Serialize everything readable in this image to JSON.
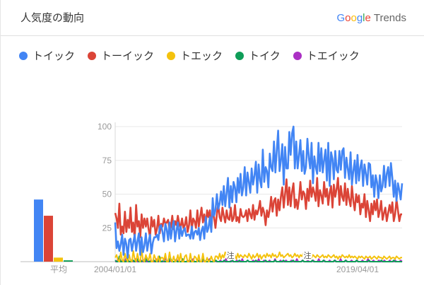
{
  "header": {
    "title": "人気度の動向",
    "brand": {
      "letters": [
        "G",
        "o",
        "o",
        "g",
        "l",
        "e"
      ],
      "letter_colors": [
        "#4285f4",
        "#ea4335",
        "#fbbc05",
        "#4285f4",
        "#34a853",
        "#ea4335"
      ],
      "suffix": "Trends"
    }
  },
  "legend": [
    {
      "label": "トイック",
      "color": "#4285f4"
    },
    {
      "label": "トーイック",
      "color": "#db4437"
    },
    {
      "label": "トエック",
      "color": "#f4c20d"
    },
    {
      "label": "トイク",
      "color": "#0f9d58"
    },
    {
      "label": "トエイック",
      "color": "#ab30c4"
    }
  ],
  "chart_data": [
    {
      "type": "bar",
      "title": "",
      "xlabel": "平均",
      "categories": [
        "トイック",
        "トーイック",
        "トエック",
        "トイク",
        "トエイック"
      ],
      "values": [
        46,
        34,
        3,
        1,
        0
      ],
      "colors": [
        "#4285f4",
        "#db4437",
        "#f4c20d",
        "#0f9d58",
        "#ab30c4"
      ],
      "ylim": [
        0,
        100
      ]
    },
    {
      "type": "line",
      "title": "",
      "x_start": "2004-01",
      "x_end": "2021-06",
      "x_ticks": [
        "2004/01/01",
        "2019/04/01"
      ],
      "y_ticks": [
        25,
        50,
        75,
        100
      ],
      "ylim": [
        0,
        100
      ],
      "grid": true,
      "annotations": [
        {
          "date": "2011-01",
          "label": "注"
        },
        {
          "date": "2015-09",
          "label": "注"
        }
      ],
      "series": [
        {
          "name": "トイック",
          "color": "#4285f4",
          "values": [
            29,
            10,
            15,
            8,
            13,
            20,
            5,
            17,
            13,
            3,
            16,
            17,
            8,
            14,
            20,
            8,
            15,
            21,
            5,
            18,
            7,
            12,
            21,
            8,
            15,
            20,
            6,
            14,
            18,
            18,
            20,
            16,
            26,
            27,
            22,
            15,
            28,
            24,
            16,
            29,
            17,
            25,
            30,
            15,
            23,
            29,
            17,
            26,
            19,
            23,
            25,
            19,
            20,
            20,
            17,
            26,
            17,
            22,
            23,
            20,
            25,
            16,
            23,
            26,
            17,
            33,
            22,
            25,
            33,
            22,
            47,
            34,
            38,
            50,
            39,
            43,
            52,
            42,
            56,
            41,
            51,
            62,
            40,
            56,
            44,
            59,
            55,
            44,
            62,
            51,
            65,
            49,
            55,
            70,
            49,
            66,
            59,
            51,
            69,
            57,
            64,
            74,
            51,
            72,
            60,
            55,
            83,
            59,
            70,
            67,
            55,
            80,
            70,
            67,
            89,
            66,
            82,
            97,
            67,
            75,
            87,
            57,
            85,
            69,
            69,
            96,
            79,
            95,
            100,
            69,
            89,
            69,
            79,
            90,
            67,
            82,
            65,
            70,
            91,
            77,
            69,
            88,
            58,
            78,
            70,
            65,
            88,
            67,
            84,
            66,
            75,
            83,
            60,
            88,
            56,
            81,
            76,
            61,
            82,
            68,
            66,
            82,
            68,
            82,
            84,
            62,
            77,
            69,
            61,
            81,
            57,
            67,
            75,
            58,
            79,
            60,
            70,
            75,
            56,
            72,
            65,
            57,
            73,
            72,
            55,
            64,
            48,
            64,
            59,
            47,
            64,
            52,
            56,
            71,
            55,
            65,
            70,
            56,
            73,
            62,
            48,
            60,
            45,
            58,
            53,
            46,
            58
          ]
        },
        {
          "name": "トーイック",
          "color": "#db4437",
          "values": [
            36,
            32,
            25,
            43,
            20,
            26,
            21,
            37,
            22,
            31,
            25,
            40,
            22,
            29,
            17,
            42,
            26,
            30,
            18,
            35,
            25,
            32,
            26,
            32,
            24,
            18,
            33,
            26,
            31,
            20,
            24,
            34,
            21,
            28,
            26,
            32,
            28,
            29,
            31,
            23,
            26,
            34,
            24,
            30,
            27,
            34,
            28,
            25,
            32,
            25,
            27,
            33,
            22,
            27,
            38,
            24,
            32,
            30,
            25,
            38,
            26,
            33,
            40,
            29,
            35,
            27,
            38,
            33,
            38,
            24,
            39,
            33,
            25,
            35,
            43,
            33,
            30,
            40,
            34,
            29,
            38,
            32,
            31,
            40,
            30,
            32,
            42,
            30,
            33,
            29,
            39,
            34,
            33,
            34,
            38,
            30,
            39,
            35,
            32,
            42,
            31,
            38,
            35,
            39,
            45,
            34,
            40,
            36,
            27,
            38,
            33,
            39,
            48,
            37,
            45,
            47,
            34,
            46,
            38,
            48,
            55,
            40,
            50,
            61,
            42,
            55,
            41,
            52,
            58,
            40,
            46,
            39,
            47,
            59,
            46,
            52,
            50,
            39,
            54,
            45,
            60,
            48,
            55,
            51,
            45,
            62,
            41,
            53,
            49,
            43,
            59,
            48,
            54,
            42,
            51,
            56,
            40,
            57,
            48,
            54,
            62,
            42,
            56,
            48,
            45,
            58,
            42,
            54,
            46,
            41,
            56,
            45,
            38,
            50,
            44,
            49,
            35,
            43,
            40,
            50,
            33,
            45,
            38,
            30,
            43,
            35,
            45,
            38,
            46,
            33,
            38,
            45,
            31,
            36,
            40,
            30,
            36,
            42,
            36,
            44,
            30,
            35,
            46,
            38,
            30,
            35,
            35
          ]
        },
        {
          "name": "トエック",
          "color": "#f4c20d",
          "values": [
            3,
            5,
            1,
            0,
            7,
            1,
            0,
            6,
            2,
            0,
            5,
            1,
            0,
            8,
            2,
            0,
            6,
            1,
            0,
            9,
            1,
            0,
            5,
            2,
            1,
            6,
            0,
            0,
            5,
            2,
            0,
            4,
            0,
            3,
            3,
            1,
            6,
            0,
            0,
            7,
            1,
            0,
            4,
            0,
            1,
            5,
            0,
            6,
            0,
            0,
            4,
            5,
            0,
            0,
            6,
            0,
            0,
            4,
            3,
            0,
            5,
            0,
            0,
            6,
            0,
            0,
            3,
            0,
            1,
            4,
            1,
            0,
            4,
            4,
            2,
            6,
            2,
            5,
            3,
            7,
            3,
            5,
            2,
            6,
            3,
            4,
            5,
            2,
            6,
            3,
            5,
            4,
            3,
            5,
            4,
            3,
            6,
            4,
            2,
            5,
            3,
            4,
            6,
            3,
            5,
            2,
            4,
            5,
            3,
            6,
            4,
            5,
            3,
            6,
            4,
            5,
            3,
            4,
            7,
            4,
            5,
            3,
            4,
            5,
            6,
            4,
            5,
            3,
            4,
            6,
            4,
            5,
            3,
            5,
            4,
            6,
            5,
            3,
            4,
            5,
            4,
            3,
            5,
            4,
            3,
            5,
            4,
            3,
            4,
            5,
            3,
            4,
            3,
            5,
            4,
            3,
            4,
            5,
            3,
            4,
            2,
            4,
            3,
            5,
            4,
            3,
            4,
            3,
            5,
            3,
            4,
            3,
            4,
            3,
            2,
            4,
            3,
            4,
            3,
            2,
            4,
            3,
            3,
            4,
            2,
            3,
            4,
            3,
            2,
            4,
            3,
            3,
            2,
            4,
            3,
            2,
            3,
            4,
            2,
            3,
            3,
            2,
            4,
            3,
            2,
            3,
            3
          ]
        },
        {
          "name": "トイク",
          "color": "#0f9d58",
          "values": [
            1,
            0,
            0,
            4,
            0,
            0,
            1,
            0,
            0,
            3,
            0,
            0,
            0,
            1,
            0,
            0,
            2,
            0,
            0,
            0,
            1,
            0,
            0,
            3,
            0,
            0,
            0,
            0,
            1,
            0,
            0,
            0,
            4,
            0,
            0,
            1,
            0,
            0,
            0,
            0,
            3,
            0,
            0,
            0,
            1,
            0,
            0,
            0,
            0,
            2,
            0,
            0,
            0,
            0,
            1,
            0,
            0,
            0,
            0,
            0,
            1,
            0,
            0,
            0,
            2,
            0,
            0,
            0,
            1,
            0,
            0,
            0,
            0,
            1,
            0,
            0,
            0,
            0,
            0,
            1,
            0,
            0,
            0,
            0,
            0,
            1,
            0,
            0,
            0,
            0,
            1,
            0,
            0,
            0,
            0,
            0,
            1,
            0,
            0,
            0,
            0,
            0,
            1,
            0,
            0,
            0,
            0,
            0,
            0,
            1,
            0,
            0,
            0,
            0,
            0,
            0,
            1,
            0,
            0,
            0,
            0,
            0,
            1,
            0,
            0,
            0,
            0,
            0,
            0,
            1,
            0,
            0,
            0,
            0,
            0,
            0,
            1,
            0,
            0,
            0,
            0,
            0,
            0,
            1,
            0,
            0,
            0,
            0,
            0,
            0,
            0,
            1,
            0,
            0,
            0,
            0,
            0,
            0,
            0,
            1,
            0,
            0,
            0,
            0,
            0,
            0,
            0,
            1,
            0,
            0,
            0,
            0,
            0,
            0,
            0,
            1,
            0,
            0,
            0,
            0,
            0,
            0,
            0,
            0,
            1,
            0,
            0,
            0,
            0,
            0,
            0,
            0,
            0,
            1,
            0,
            0,
            0,
            0,
            0,
            0,
            0,
            0,
            1,
            0,
            0,
            0,
            0,
            0,
            0
          ]
        },
        {
          "name": "トエイック",
          "color": "#ab30c4",
          "values": [
            0,
            0,
            2,
            0,
            0,
            1,
            0,
            0,
            3,
            0,
            0,
            0,
            1,
            0,
            0,
            2,
            0,
            0,
            0,
            1,
            0,
            0,
            3,
            0,
            0,
            0,
            1,
            0,
            0,
            0,
            2,
            0,
            0,
            1,
            0,
            0,
            0,
            3,
            0,
            0,
            0,
            1,
            0,
            0,
            0,
            2,
            0,
            0,
            0,
            1,
            0,
            0,
            0,
            1,
            0,
            0,
            0,
            2,
            0,
            0,
            0,
            1,
            0,
            0,
            0,
            1,
            0,
            0,
            0,
            2,
            0,
            0,
            0,
            1,
            0,
            0,
            0,
            1,
            0,
            0,
            0,
            2,
            0,
            0,
            0,
            1,
            0,
            0,
            0,
            1,
            0,
            0,
            0,
            2,
            0,
            0,
            0,
            1,
            0,
            0,
            0,
            1,
            0,
            0,
            0,
            2,
            0,
            0,
            0,
            1,
            0,
            0,
            0,
            1,
            0,
            0,
            0,
            2,
            0,
            0,
            0,
            1,
            0,
            0,
            0,
            1,
            0,
            0,
            0,
            1,
            0,
            0,
            0,
            2,
            0,
            0,
            0,
            1,
            0,
            0,
            0,
            1,
            0,
            0,
            0,
            1,
            0,
            0,
            0,
            2,
            0,
            0,
            0,
            1,
            0,
            0,
            0,
            1,
            0,
            0,
            0,
            1,
            0,
            0,
            0,
            2,
            0,
            0,
            0,
            1,
            0,
            0,
            0,
            1,
            0,
            0,
            0,
            1,
            0,
            0,
            0,
            1,
            0,
            0,
            0,
            2,
            0,
            0,
            0,
            1,
            0,
            0,
            0,
            1,
            0,
            0,
            0,
            1,
            0,
            0,
            0,
            1,
            0,
            0,
            0,
            1,
            0,
            0,
            0,
            1,
            0
          ]
        }
      ]
    }
  ]
}
